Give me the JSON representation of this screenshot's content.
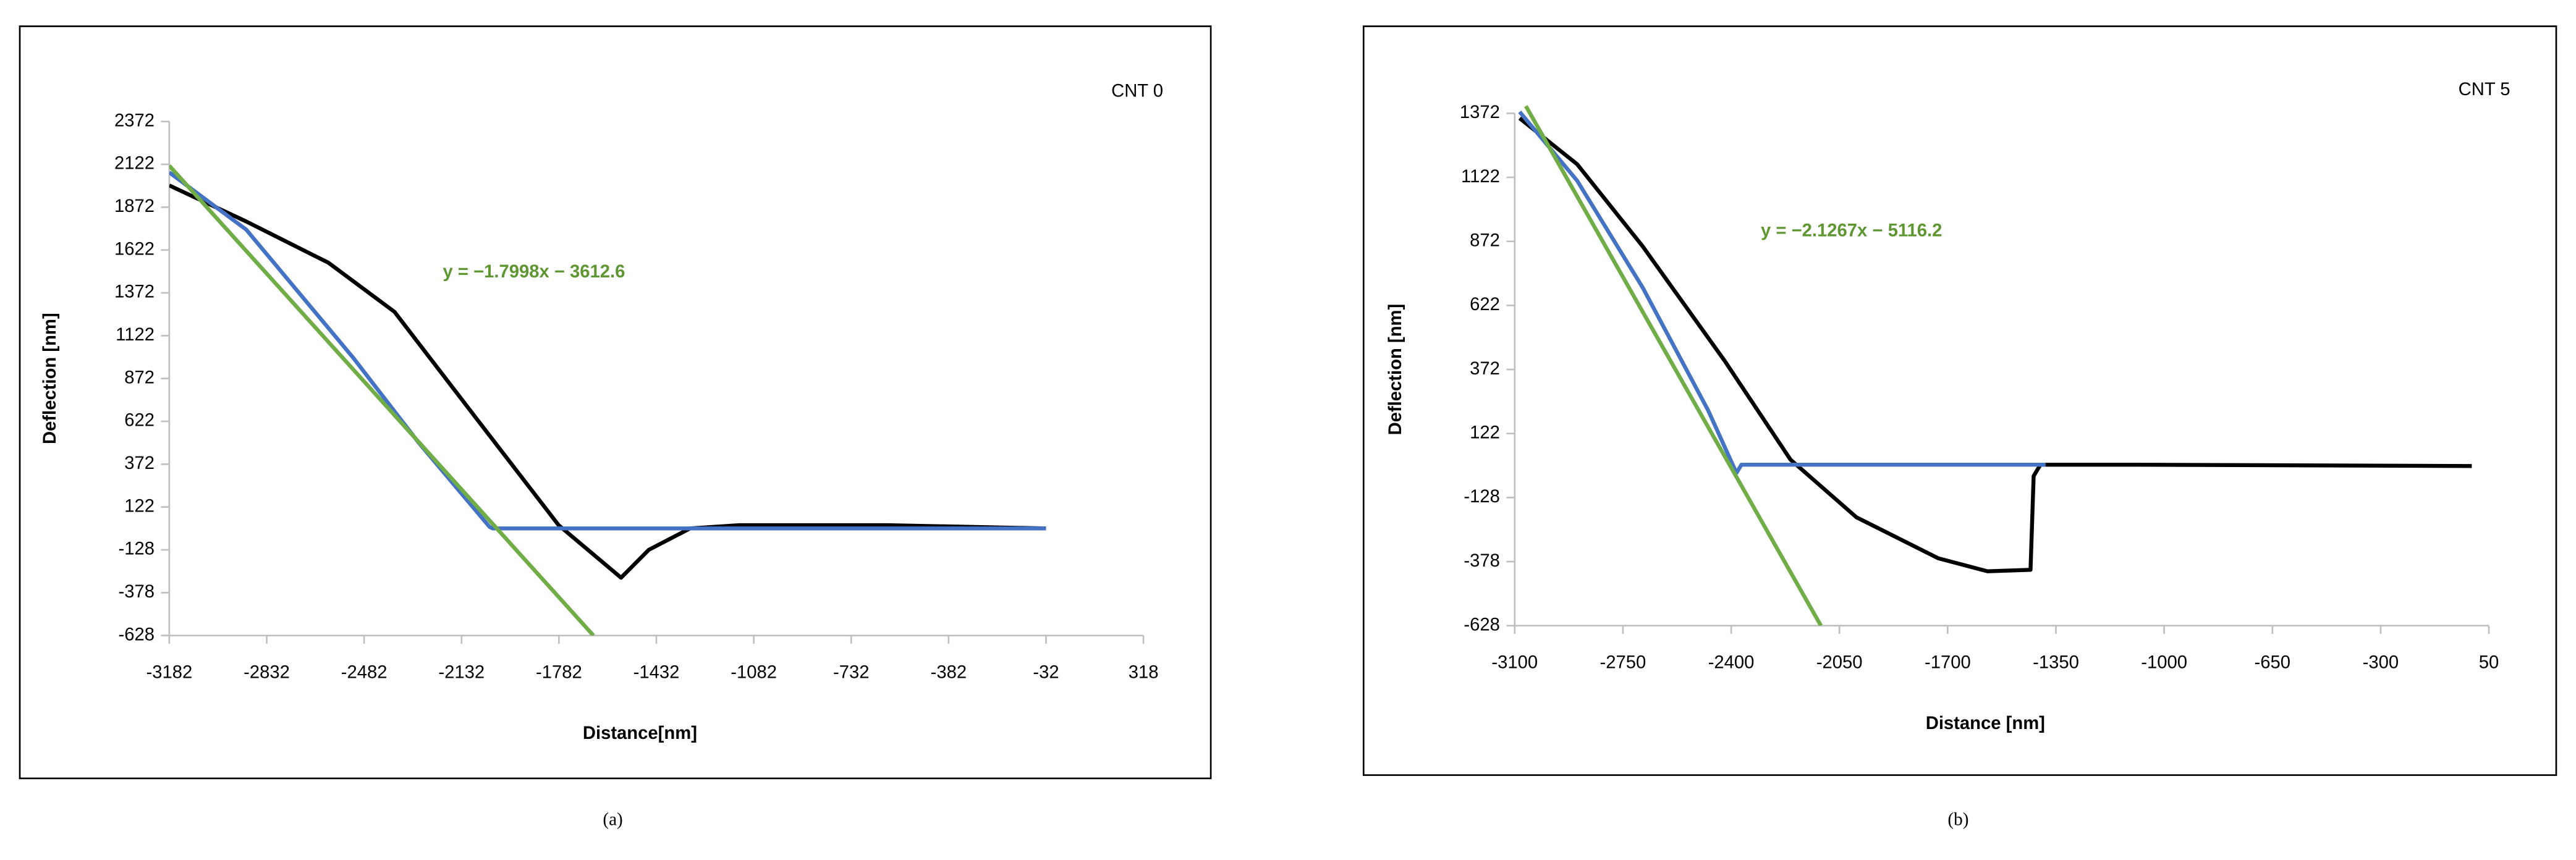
{
  "chart_data": [
    {
      "type": "line",
      "panel_label": "(a)",
      "label": "CNT 0",
      "equation": "y = −1.7998x − 3612.6",
      "x_label": "Distance[nm]",
      "y_label": "Deflection  [nm]",
      "xlim": [
        -3182,
        318
      ],
      "xticks": [
        -3182,
        -2832,
        -2482,
        -2132,
        -1782,
        -1432,
        -1082,
        -732,
        -382,
        -32,
        318
      ],
      "ylim": [
        -628,
        2372
      ],
      "yticks": [
        -628,
        -378,
        -128,
        122,
        372,
        622,
        872,
        1122,
        1372,
        1622,
        1872,
        2122,
        2372
      ],
      "series": [
        {
          "color": "#000000",
          "x": [
            -3182,
            -2905,
            -2610,
            -2373,
            -2078,
            -1783,
            -1559,
            -1459,
            -1311,
            -1134,
            -603,
            -32
          ],
          "values": [
            1999,
            1788,
            1548,
            1261,
            638,
            16,
            -291,
            -128,
            -3,
            16,
            16,
            -3
          ]
        },
        {
          "color": "#4472c4",
          "x": [
            -3182,
            -2905,
            -2521,
            -2285,
            -2031,
            -2019,
            -32
          ],
          "values": [
            2075,
            1740,
            993,
            495,
            6,
            -3,
            -3
          ]
        },
        {
          "color": "#70ad47",
          "x": [
            -3182,
            -1658
          ],
          "values": [
            2114.4,
            -628
          ]
        }
      ]
    },
    {
      "type": "line",
      "panel_label": "(b)",
      "label": "CNT 5",
      "equation": "y = −2.1267x − 5116.2",
      "x_label": "Distance [nm]",
      "y_label": "Deflection [nm]",
      "xlim": [
        -3100,
        50
      ],
      "xticks": [
        -3100,
        -2750,
        -2400,
        -2050,
        -1700,
        -1350,
        -1000,
        -650,
        -300,
        50
      ],
      "ylim": [
        -628,
        1372
      ],
      "yticks": [
        -628,
        -378,
        -128,
        122,
        372,
        622,
        872,
        1122,
        1372
      ],
      "series": [
        {
          "color": "#000000",
          "x": [
            -3084,
            -2898,
            -2686,
            -2420,
            -2208,
            -1995,
            -1730,
            -1571,
            -1432,
            -1422,
            -1400,
            -1092,
            -5
          ],
          "values": [
            1353,
            1173,
            853,
            404,
            20,
            -205,
            -365,
            -416,
            -410,
            -44,
            0,
            0,
            -5
          ]
        },
        {
          "color": "#4472c4",
          "x": [
            -3084,
            -2898,
            -2686,
            -2474,
            -2383,
            -2367,
            -1383
          ],
          "values": [
            1378,
            1109,
            692,
            212,
            -32,
            0,
            0
          ]
        },
        {
          "color": "#70ad47",
          "x": [
            -3064,
            -2110
          ],
          "values": [
            1400,
            -628
          ]
        }
      ]
    }
  ]
}
